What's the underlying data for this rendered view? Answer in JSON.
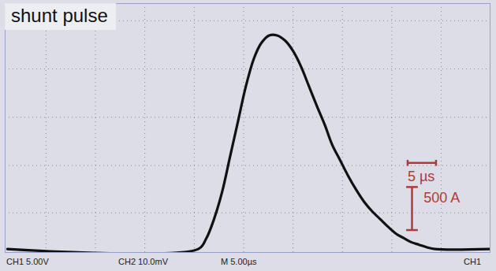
{
  "chart_data": {
    "type": "line",
    "title": "shunt pulse",
    "x": [
      -50.3,
      -16.7,
      -15.3,
      -13.9,
      -12.5,
      -11.1,
      -9.7,
      -8.3,
      -6.9,
      -5.6,
      -4.2,
      -2.8,
      -1.4,
      0,
      1.4,
      2.8,
      4.2,
      5.6,
      6.9,
      8.3,
      9.7,
      11.1,
      12.5,
      13.9,
      15.3,
      16.7,
      18.1,
      19.4,
      20.8,
      22.2,
      23.6,
      25.0,
      34.7
    ],
    "values": [
      0,
      0,
      120,
      350,
      660,
      1070,
      1480,
      1890,
      2210,
      2390,
      2480,
      2480,
      2420,
      2300,
      2120,
      1890,
      1660,
      1440,
      1210,
      1030,
      850,
      690,
      550,
      440,
      350,
      260,
      180,
      130,
      80,
      50,
      20,
      0,
      0
    ],
    "color": "#111111",
    "xlim": [
      -50.7,
      34.7
    ],
    "xticks": [
      -43.5,
      -34.8,
      -26.1,
      -17.4,
      -8.7,
      0,
      8.7,
      17.4,
      26.1
    ],
    "ylim": [
      -40,
      2850
    ],
    "yticks": [
      420,
      970,
      1530,
      2090,
      2650
    ],
    "grid": true,
    "tick_labels": false,
    "scale_bars": [
      {
        "label": "500 A",
        "value": 500,
        "axis": "y",
        "color": "#b03a3a"
      },
      {
        "label": "5 µs",
        "value": 5,
        "axis": "x",
        "color": "#b03a3a"
      }
    ],
    "status_bar": [
      "CH1 5.00V",
      "CH2 10.0mV",
      "M 5.00µs",
      "CH1"
    ]
  }
}
